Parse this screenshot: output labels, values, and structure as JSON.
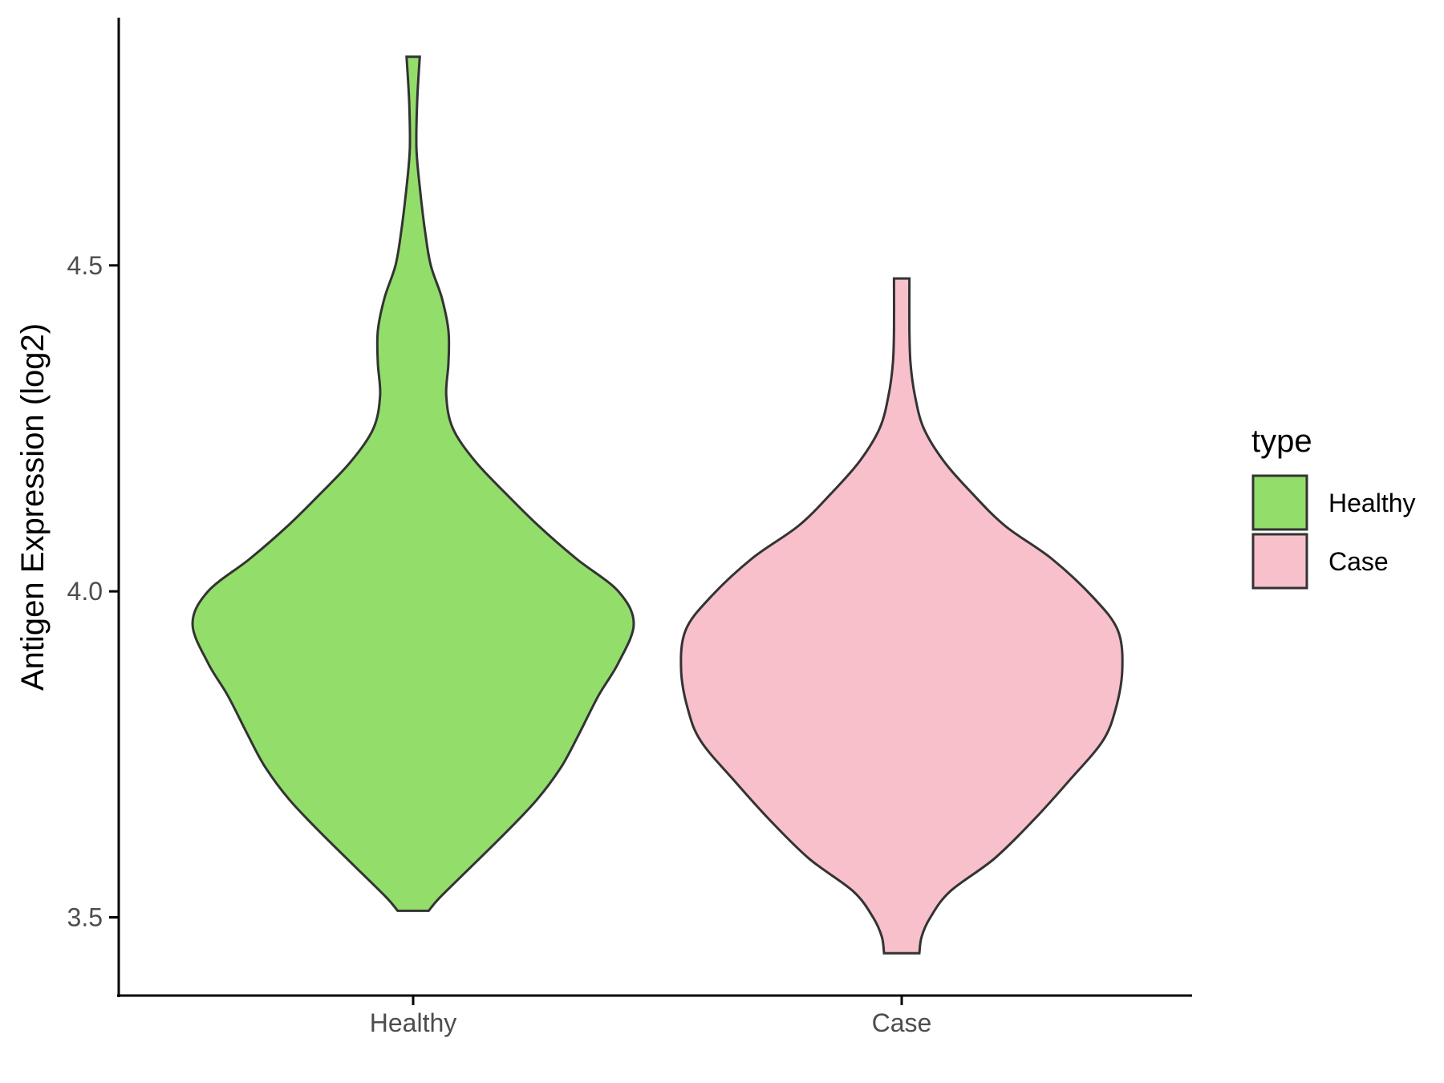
{
  "chart_data": {
    "type": "violin",
    "title": "",
    "xlabel": "",
    "ylabel": "Antigen Expression (log2)",
    "ylim": [
      3.38,
      4.88
    ],
    "yticks": [
      3.5,
      4.0,
      4.5
    ],
    "ytick_labels": [
      "3.5",
      "4.0",
      "4.5"
    ],
    "categories": [
      "Healthy",
      "Case"
    ],
    "legend": {
      "title": "type",
      "position": "right",
      "entries": [
        {
          "label": "Healthy",
          "color": "#93dd6b"
        },
        {
          "label": "Case",
          "color": "#f7c0cb"
        }
      ]
    },
    "series": [
      {
        "name": "Healthy",
        "color": "#93dd6b",
        "min": 3.51,
        "max": 4.82,
        "density_profile": [
          [
            3.51,
            0.07
          ],
          [
            3.53,
            0.12
          ],
          [
            3.57,
            0.24
          ],
          [
            3.63,
            0.42
          ],
          [
            3.68,
            0.56
          ],
          [
            3.73,
            0.67
          ],
          [
            3.78,
            0.75
          ],
          [
            3.84,
            0.84
          ],
          [
            3.89,
            0.93
          ],
          [
            3.95,
            1.0
          ],
          [
            4.0,
            0.93
          ],
          [
            4.05,
            0.74
          ],
          [
            4.1,
            0.57
          ],
          [
            4.15,
            0.42
          ],
          [
            4.2,
            0.28
          ],
          [
            4.25,
            0.18
          ],
          [
            4.3,
            0.15
          ],
          [
            4.35,
            0.16
          ],
          [
            4.4,
            0.16
          ],
          [
            4.45,
            0.13
          ],
          [
            4.5,
            0.08
          ],
          [
            4.55,
            0.055
          ],
          [
            4.62,
            0.03
          ],
          [
            4.68,
            0.015
          ],
          [
            4.75,
            0.018
          ],
          [
            4.82,
            0.03
          ]
        ]
      },
      {
        "name": "Case",
        "color": "#f7c0cb",
        "min": 3.445,
        "max": 4.48,
        "density_profile": [
          [
            3.445,
            0.08
          ],
          [
            3.47,
            0.09
          ],
          [
            3.5,
            0.13
          ],
          [
            3.54,
            0.22
          ],
          [
            3.59,
            0.42
          ],
          [
            3.65,
            0.6
          ],
          [
            3.71,
            0.76
          ],
          [
            3.77,
            0.91
          ],
          [
            3.82,
            0.97
          ],
          [
            3.88,
            1.0
          ],
          [
            3.94,
            0.98
          ],
          [
            3.99,
            0.87
          ],
          [
            4.05,
            0.68
          ],
          [
            4.1,
            0.47
          ],
          [
            4.15,
            0.32
          ],
          [
            4.2,
            0.19
          ],
          [
            4.25,
            0.1
          ],
          [
            4.3,
            0.06
          ],
          [
            4.35,
            0.04
          ],
          [
            4.4,
            0.035
          ],
          [
            4.48,
            0.035
          ]
        ]
      }
    ]
  }
}
